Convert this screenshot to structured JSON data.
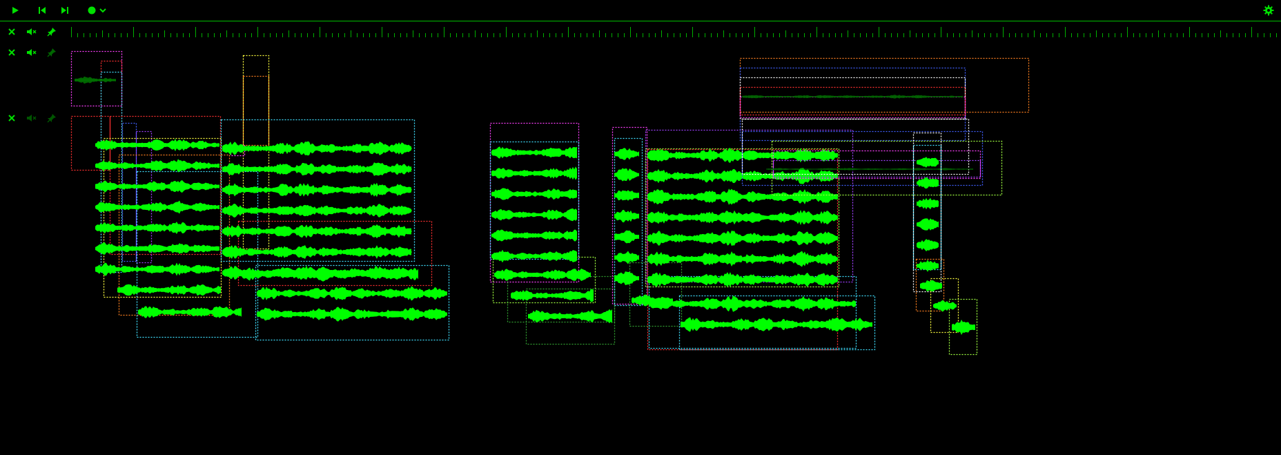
{
  "app": {
    "accent_color": "#00ff00",
    "dim_color": "#006600",
    "background": "#000000"
  },
  "toolbar": {
    "play_icon": "play-icon",
    "skip_back_icon": "skip-to-start-icon",
    "skip_forward_icon": "skip-to-end-icon",
    "record_icon": "record-icon",
    "record_menu_icon": "chevron-down-icon",
    "settings_icon": "gear-icon"
  },
  "tracks": [
    {
      "remove_icon": "close-icon",
      "mute_icon": "mute-icon",
      "pin_icon": "pin-icon",
      "pinned": true
    },
    {
      "remove_icon": "close-icon",
      "mute_icon": "mute-icon",
      "pin_icon": "pin-icon",
      "pinned": false
    },
    {
      "remove_icon": "close-icon",
      "mute_icon": "mute-icon",
      "pin_icon": "pin-icon",
      "pinned": false,
      "dimmed": true
    }
  ],
  "clip_colors": [
    "#ff40ff",
    "#ff3030",
    "#40e0ff",
    "#ffff40",
    "#4060ff",
    "#a040ff",
    "#ff8020",
    "#a0ff40",
    "#ffffff",
    "#30a030"
  ]
}
